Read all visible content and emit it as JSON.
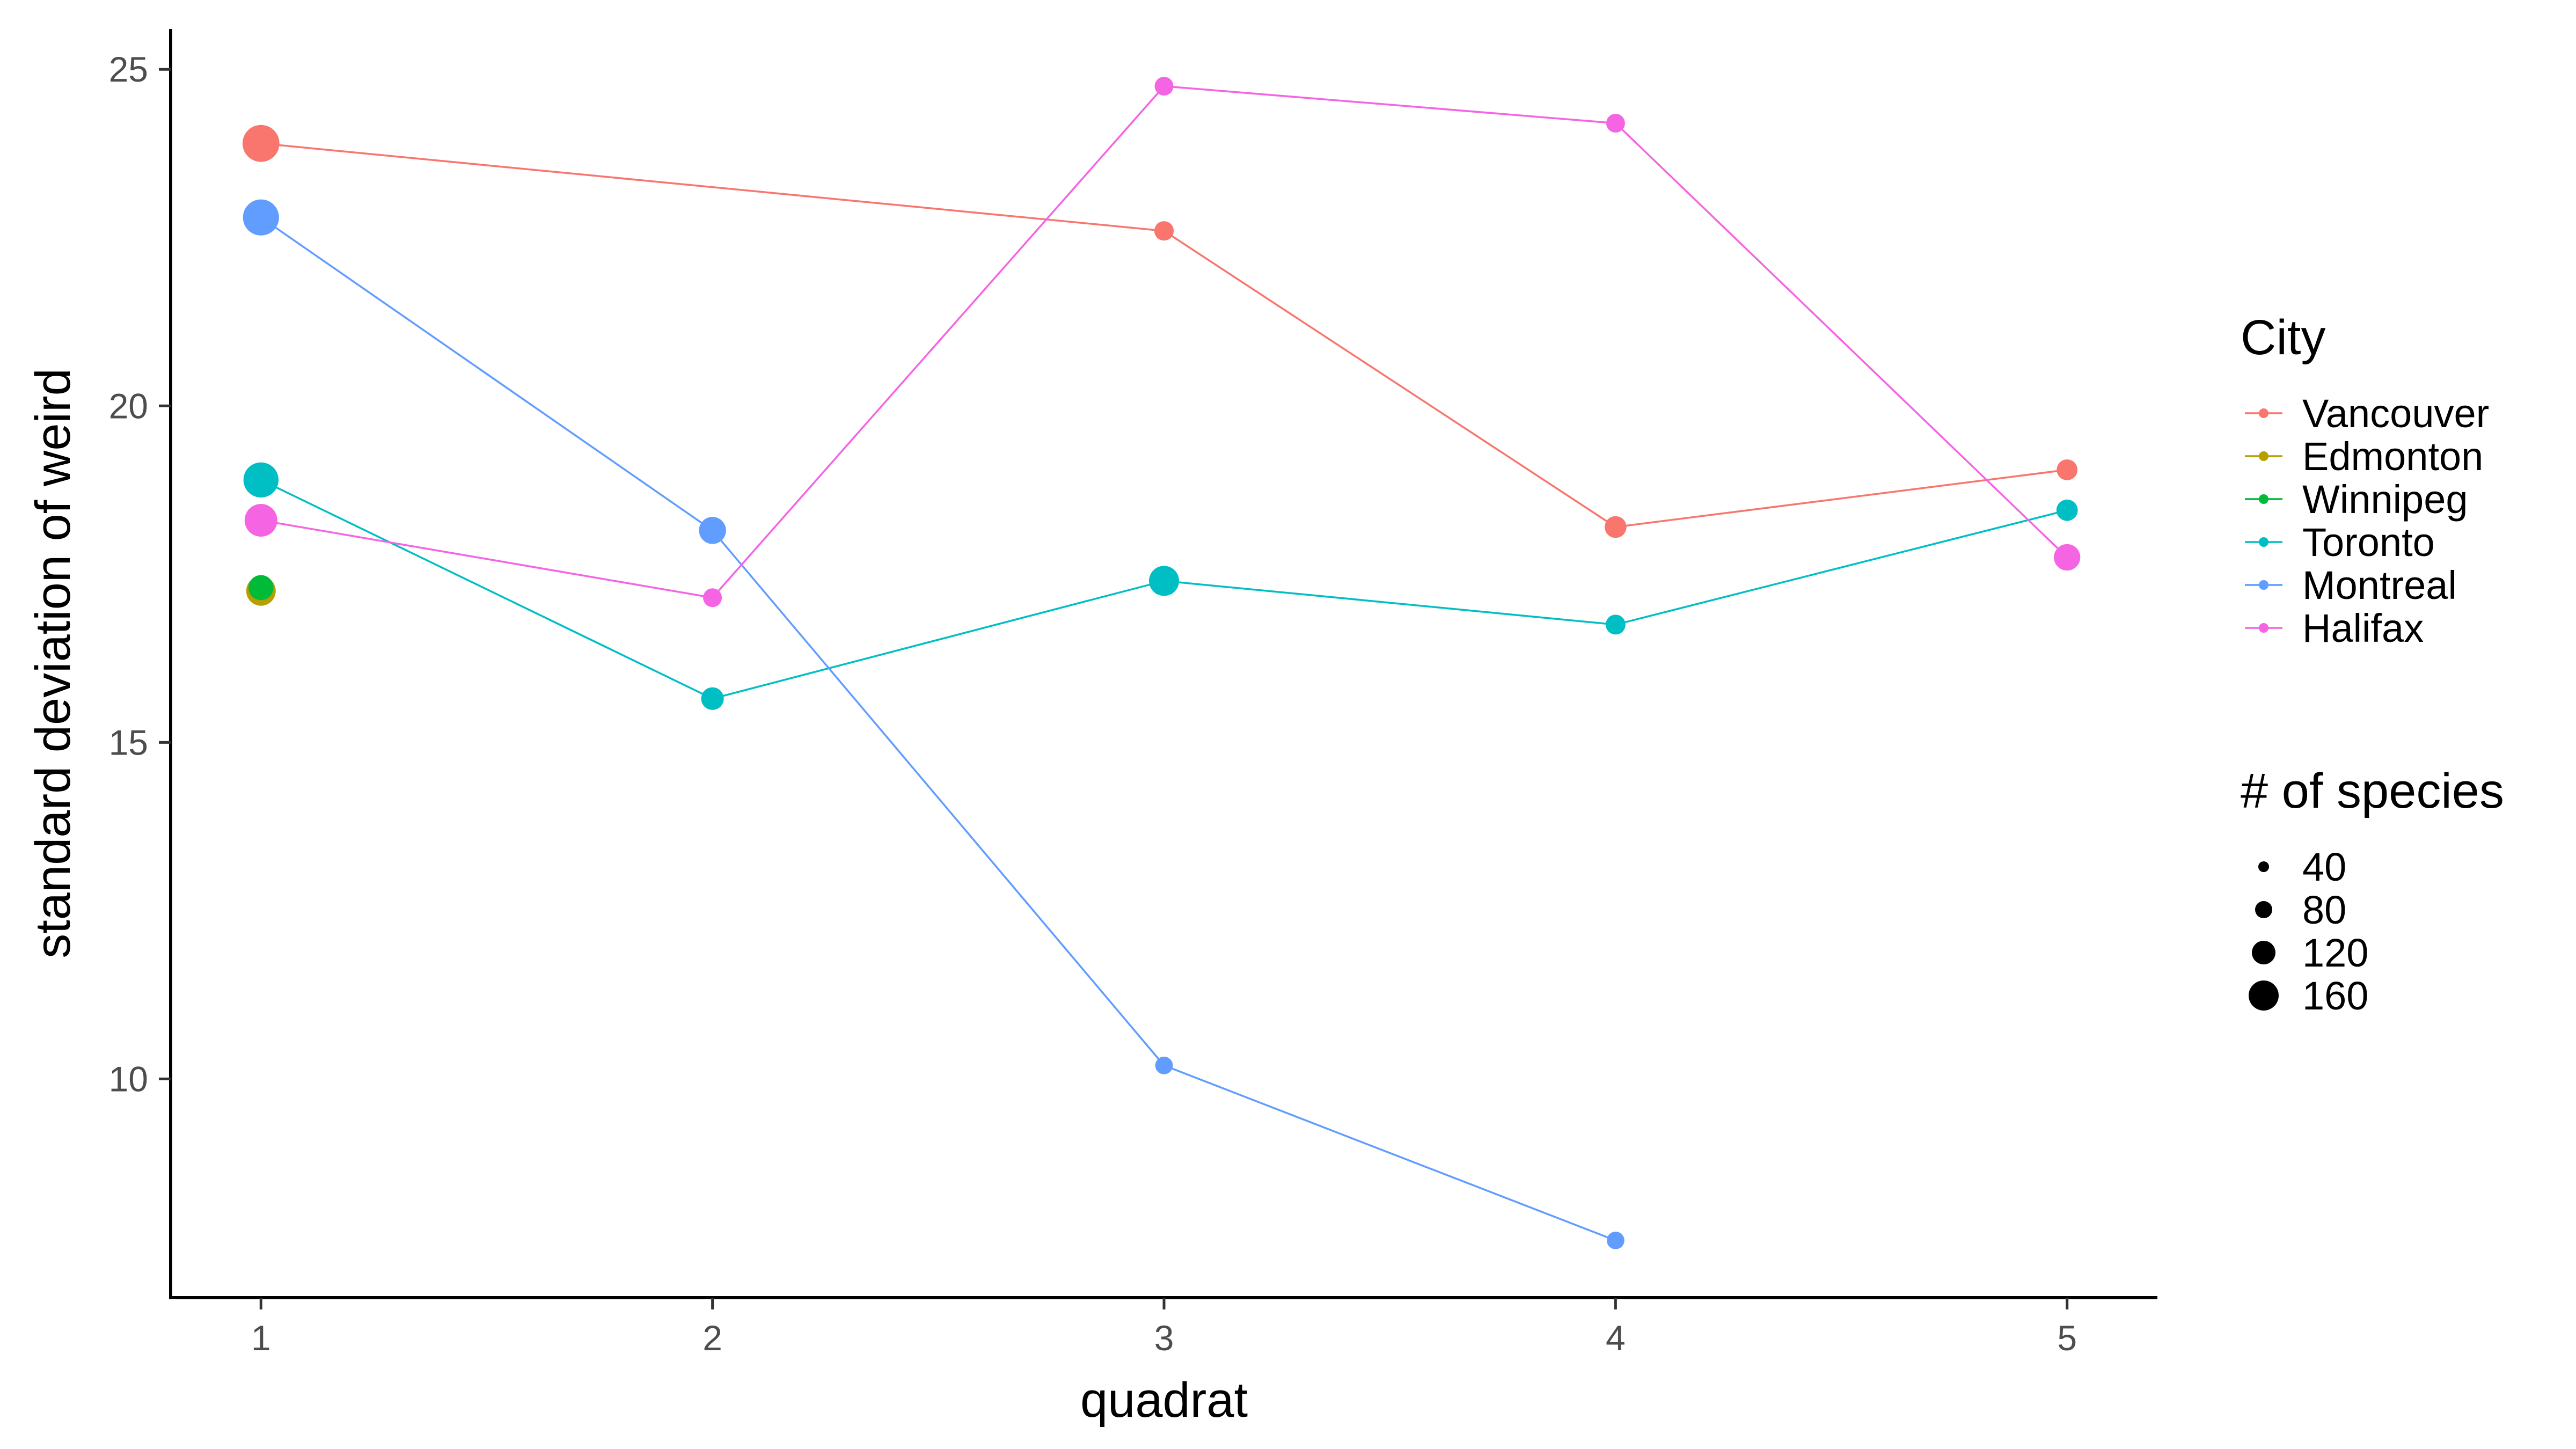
{
  "chart_data": {
    "type": "line",
    "xlabel": "quadrat",
    "ylabel": "standard deviation of weird",
    "x_ticks": [
      1,
      2,
      3,
      4,
      5
    ],
    "y_ticks": [
      10,
      15,
      20,
      25
    ],
    "xlim": [
      0.8,
      5.2
    ],
    "ylim": [
      6.75,
      25.6
    ],
    "grid": false,
    "legend_placement": "right",
    "legend": {
      "color_title": "City",
      "size_title": "# of species",
      "size_entries": [
        {
          "label": "40",
          "value": 40
        },
        {
          "label": "80",
          "value": 80
        },
        {
          "label": "120",
          "value": 120
        },
        {
          "label": "160",
          "value": 160
        }
      ]
    },
    "series": [
      {
        "name": "Vancouver",
        "color": "#F8766D",
        "points": [
          {
            "x": 1,
            "y": 23.9,
            "size": 170
          },
          {
            "x": 3,
            "y": 22.6,
            "size": 28
          },
          {
            "x": 4,
            "y": 18.2,
            "size": 40
          },
          {
            "x": 5,
            "y": 19.05,
            "size": 35
          }
        ]
      },
      {
        "name": "Edmonton",
        "color": "#B79F00",
        "points": [
          {
            "x": 1,
            "y": 17.25,
            "size": 95
          }
        ]
      },
      {
        "name": "Winnipeg",
        "color": "#00BA38",
        "points": [
          {
            "x": 1,
            "y": 17.3,
            "size": 60
          }
        ]
      },
      {
        "name": "Toronto",
        "color": "#00BFC4",
        "points": [
          {
            "x": 1,
            "y": 18.9,
            "size": 150
          },
          {
            "x": 2,
            "y": 15.65,
            "size": 45
          },
          {
            "x": 3,
            "y": 17.4,
            "size": 100
          },
          {
            "x": 4,
            "y": 16.75,
            "size": 30
          },
          {
            "x": 5,
            "y": 18.45,
            "size": 38
          }
        ]
      },
      {
        "name": "Montreal",
        "color": "#619CFF",
        "points": [
          {
            "x": 1,
            "y": 22.8,
            "size": 160
          },
          {
            "x": 2,
            "y": 18.15,
            "size": 75
          },
          {
            "x": 3,
            "y": 10.2,
            "size": 20
          },
          {
            "x": 4,
            "y": 7.6,
            "size": 20
          }
        ]
      },
      {
        "name": "Halifax",
        "color": "#F564E3",
        "points": [
          {
            "x": 1,
            "y": 18.3,
            "size": 125
          },
          {
            "x": 2,
            "y": 17.15,
            "size": 25
          },
          {
            "x": 3,
            "y": 24.75,
            "size": 25
          },
          {
            "x": 4,
            "y": 24.2,
            "size": 25
          },
          {
            "x": 5,
            "y": 17.75,
            "size": 70
          }
        ]
      }
    ]
  }
}
